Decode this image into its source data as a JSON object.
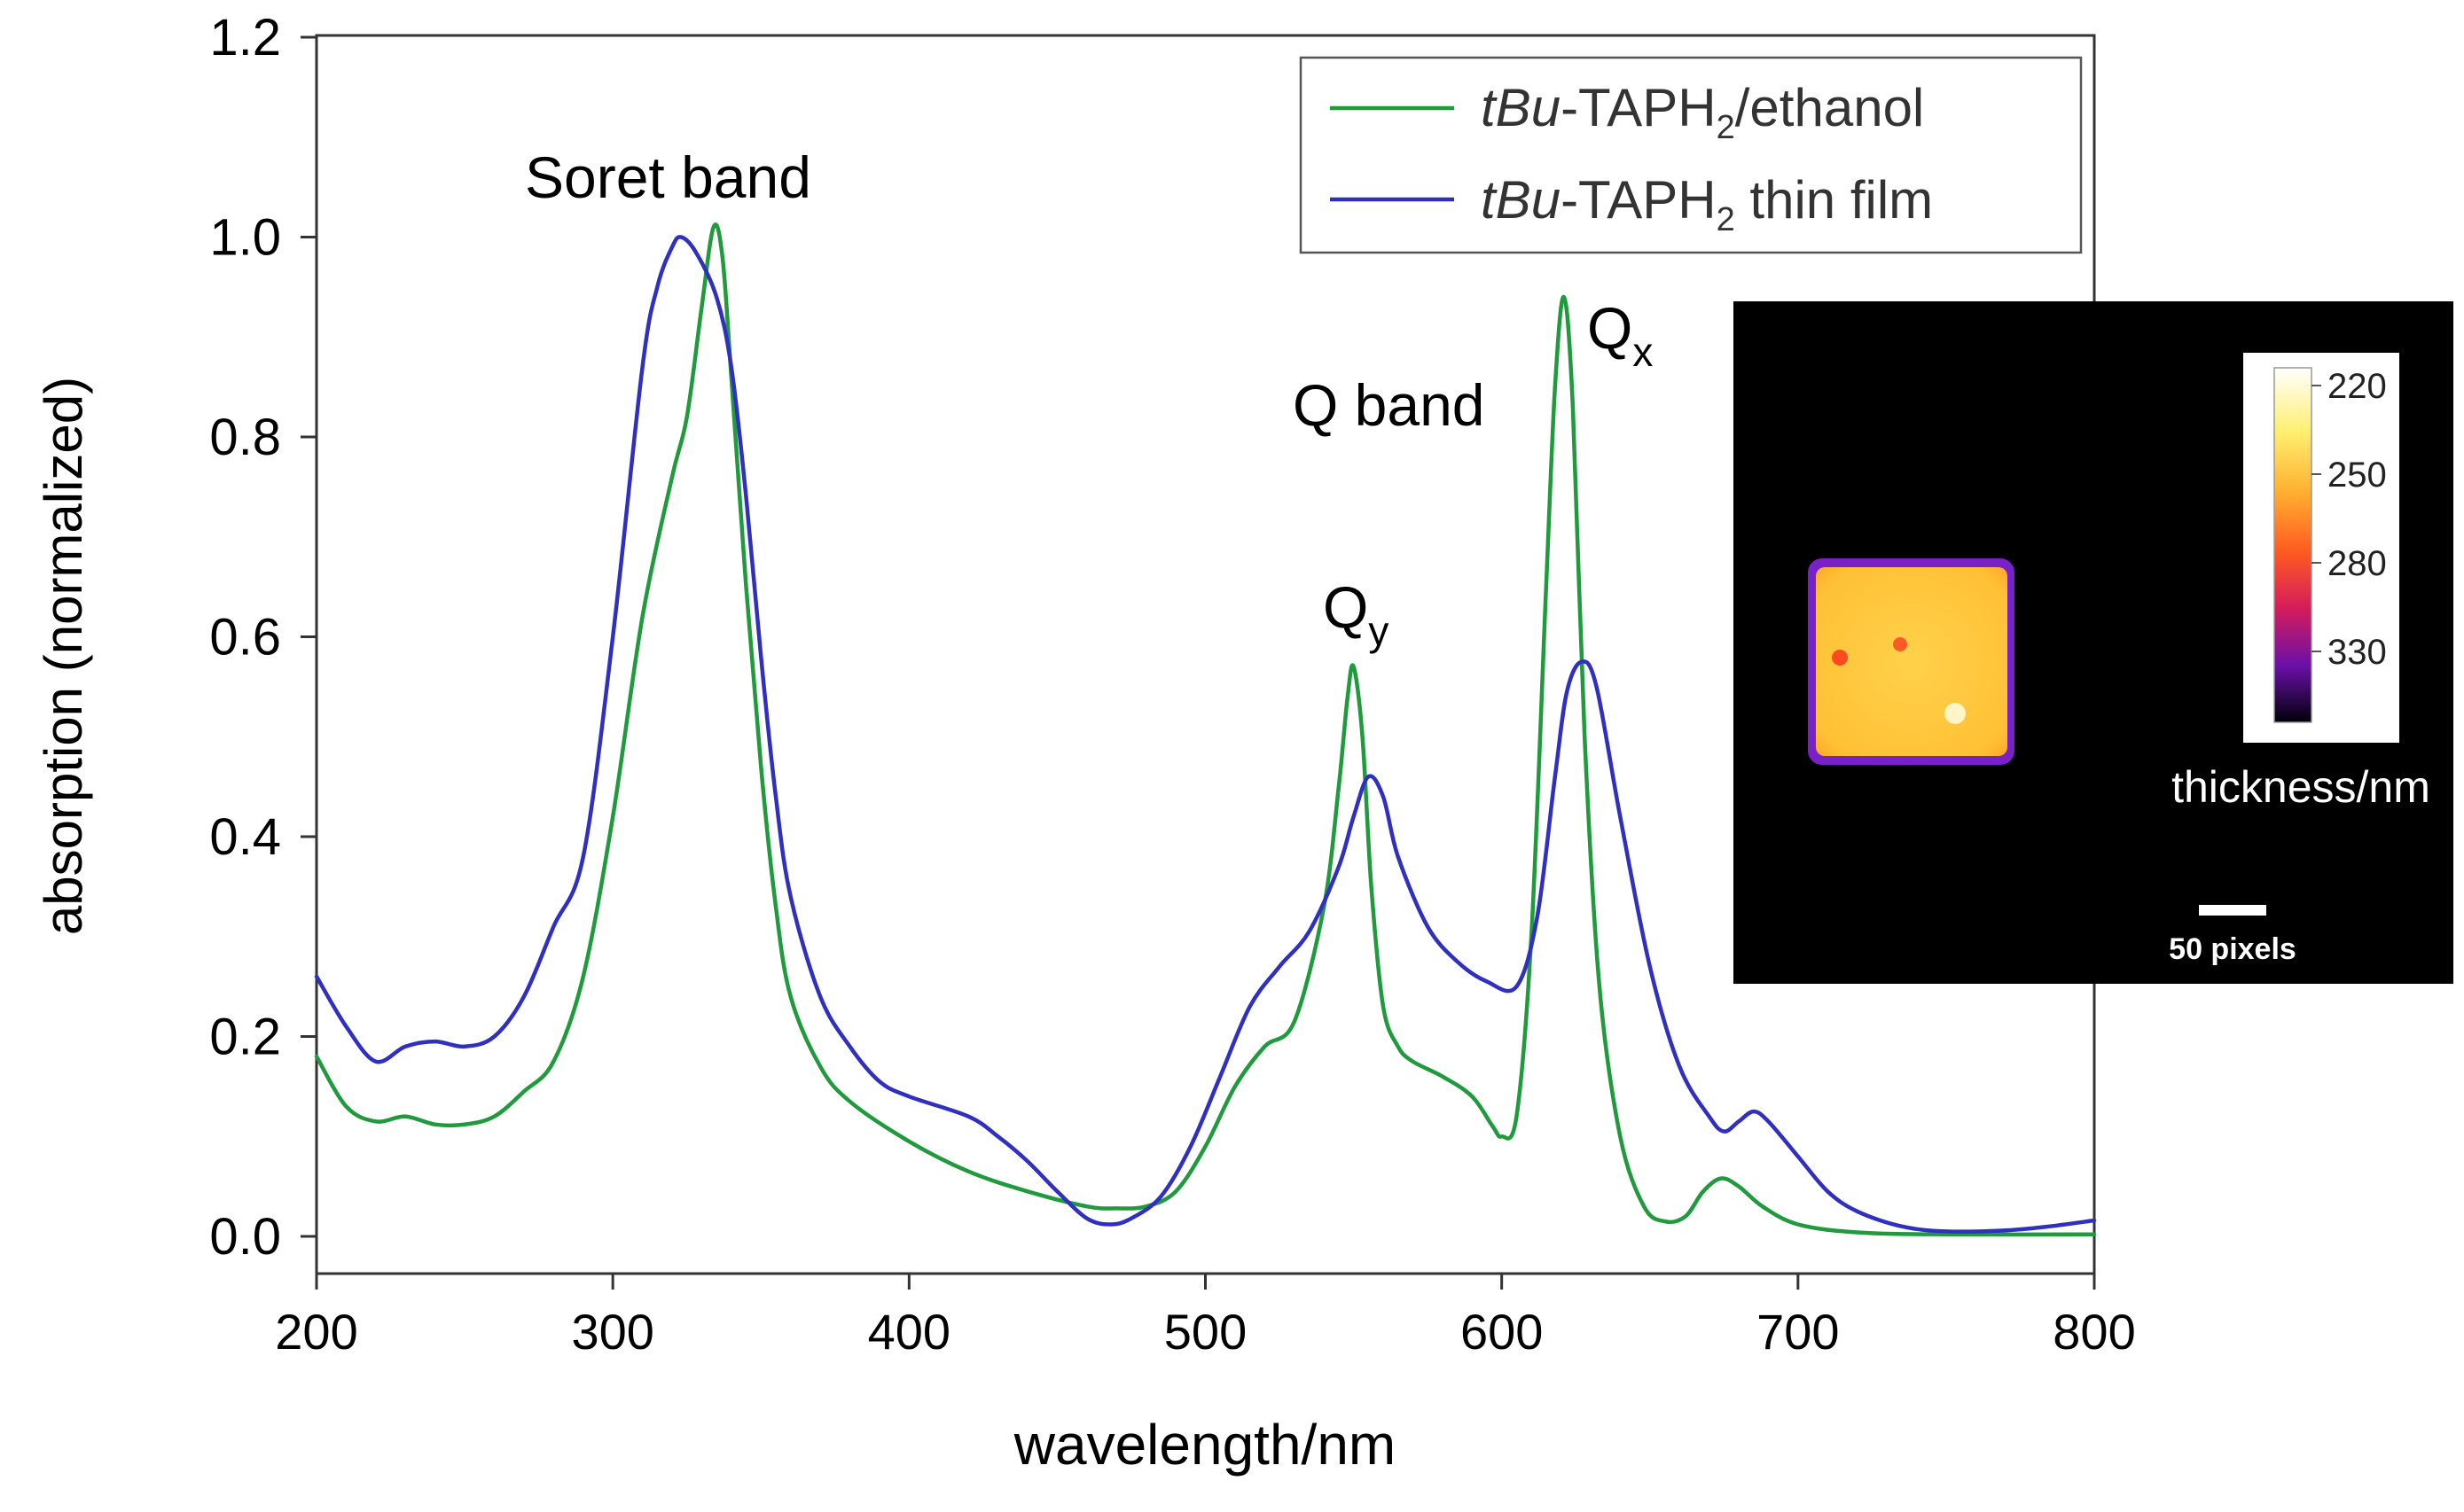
{
  "chart_data": {
    "type": "line",
    "xlabel": "wavelength/nm",
    "ylabel": "absorption (normalized)",
    "xlim": [
      200,
      800
    ],
    "ylim": [
      -0.05,
      1.2
    ],
    "x_ticks": [
      "200",
      "300",
      "400",
      "500",
      "600",
      "700",
      "800"
    ],
    "y_ticks": [
      "0.0",
      "0.2",
      "0.4",
      "0.6",
      "0.8",
      "1.0",
      "1.2"
    ],
    "series": [
      {
        "name_italic": "tBu",
        "name_main": "-TAPH",
        "name_sub": "2",
        "name_tail": "/ethanol",
        "color": "#1f9a3c",
        "points": [
          [
            200,
            0.18
          ],
          [
            210,
            0.13
          ],
          [
            220,
            0.115
          ],
          [
            230,
            0.12
          ],
          [
            240,
            0.112
          ],
          [
            250,
            0.112
          ],
          [
            260,
            0.12
          ],
          [
            270,
            0.145
          ],
          [
            280,
            0.175
          ],
          [
            290,
            0.26
          ],
          [
            300,
            0.42
          ],
          [
            310,
            0.62
          ],
          [
            320,
            0.76
          ],
          [
            325,
            0.82
          ],
          [
            330,
            0.93
          ],
          [
            334,
            1.01
          ],
          [
            337,
            0.98
          ],
          [
            340,
            0.86
          ],
          [
            345,
            0.65
          ],
          [
            350,
            0.47
          ],
          [
            355,
            0.33
          ],
          [
            360,
            0.24
          ],
          [
            370,
            0.17
          ],
          [
            380,
            0.135
          ],
          [
            400,
            0.095
          ],
          [
            420,
            0.065
          ],
          [
            440,
            0.045
          ],
          [
            460,
            0.03
          ],
          [
            470,
            0.028
          ],
          [
            480,
            0.03
          ],
          [
            490,
            0.045
          ],
          [
            500,
            0.09
          ],
          [
            510,
            0.15
          ],
          [
            520,
            0.19
          ],
          [
            530,
            0.215
          ],
          [
            540,
            0.33
          ],
          [
            545,
            0.45
          ],
          [
            548,
            0.54
          ],
          [
            550,
            0.57
          ],
          [
            553,
            0.5
          ],
          [
            556,
            0.35
          ],
          [
            560,
            0.23
          ],
          [
            565,
            0.19
          ],
          [
            570,
            0.175
          ],
          [
            580,
            0.16
          ],
          [
            590,
            0.14
          ],
          [
            597,
            0.11
          ],
          [
            600,
            0.1
          ],
          [
            605,
            0.12
          ],
          [
            610,
            0.3
          ],
          [
            615,
            0.65
          ],
          [
            618,
            0.85
          ],
          [
            621,
            0.94
          ],
          [
            624,
            0.83
          ],
          [
            628,
            0.5
          ],
          [
            633,
            0.25
          ],
          [
            640,
            0.1
          ],
          [
            648,
            0.03
          ],
          [
            655,
            0.015
          ],
          [
            662,
            0.02
          ],
          [
            668,
            0.045
          ],
          [
            674,
            0.058
          ],
          [
            680,
            0.05
          ],
          [
            688,
            0.03
          ],
          [
            700,
            0.012
          ],
          [
            720,
            0.004
          ],
          [
            750,
            0.002
          ],
          [
            800,
            0.002
          ]
        ]
      },
      {
        "name_italic": "tBu",
        "name_main": "-TAPH",
        "name_sub": "2",
        "name_tail": " thin film",
        "color": "#3030c0",
        "points": [
          [
            200,
            0.26
          ],
          [
            210,
            0.21
          ],
          [
            220,
            0.175
          ],
          [
            230,
            0.19
          ],
          [
            240,
            0.195
          ],
          [
            250,
            0.19
          ],
          [
            260,
            0.2
          ],
          [
            270,
            0.24
          ],
          [
            280,
            0.31
          ],
          [
            290,
            0.38
          ],
          [
            300,
            0.6
          ],
          [
            310,
            0.87
          ],
          [
            315,
            0.95
          ],
          [
            320,
            0.99
          ],
          [
            323,
            1.0
          ],
          [
            328,
            0.985
          ],
          [
            335,
            0.94
          ],
          [
            340,
            0.87
          ],
          [
            345,
            0.74
          ],
          [
            350,
            0.58
          ],
          [
            355,
            0.44
          ],
          [
            360,
            0.34
          ],
          [
            370,
            0.24
          ],
          [
            380,
            0.19
          ],
          [
            390,
            0.155
          ],
          [
            400,
            0.14
          ],
          [
            420,
            0.12
          ],
          [
            430,
            0.1
          ],
          [
            440,
            0.075
          ],
          [
            450,
            0.045
          ],
          [
            460,
            0.018
          ],
          [
            468,
            0.012
          ],
          [
            475,
            0.018
          ],
          [
            485,
            0.04
          ],
          [
            495,
            0.09
          ],
          [
            505,
            0.16
          ],
          [
            515,
            0.23
          ],
          [
            525,
            0.27
          ],
          [
            535,
            0.305
          ],
          [
            545,
            0.37
          ],
          [
            550,
            0.42
          ],
          [
            555,
            0.46
          ],
          [
            560,
            0.44
          ],
          [
            565,
            0.38
          ],
          [
            575,
            0.31
          ],
          [
            585,
            0.275
          ],
          [
            595,
            0.255
          ],
          [
            605,
            0.25
          ],
          [
            612,
            0.32
          ],
          [
            618,
            0.46
          ],
          [
            622,
            0.545
          ],
          [
            627,
            0.575
          ],
          [
            632,
            0.55
          ],
          [
            640,
            0.42
          ],
          [
            650,
            0.27
          ],
          [
            660,
            0.17
          ],
          [
            670,
            0.12
          ],
          [
            675,
            0.105
          ],
          [
            680,
            0.115
          ],
          [
            685,
            0.125
          ],
          [
            690,
            0.115
          ],
          [
            700,
            0.08
          ],
          [
            710,
            0.045
          ],
          [
            720,
            0.025
          ],
          [
            735,
            0.01
          ],
          [
            750,
            0.005
          ],
          [
            770,
            0.006
          ],
          [
            785,
            0.01
          ],
          [
            800,
            0.016
          ]
        ]
      }
    ],
    "annotations": {
      "soret": "Soret band",
      "qband": "Q band",
      "qy_main": "Q",
      "qy_sub": "y",
      "qx_main": "Q",
      "qx_sub": "x"
    },
    "inset": {
      "colorbar_ticks": [
        "220",
        "250",
        "280",
        "330"
      ],
      "colorbar_label": "thickness/nm",
      "scale_label": "50 pixels"
    }
  }
}
